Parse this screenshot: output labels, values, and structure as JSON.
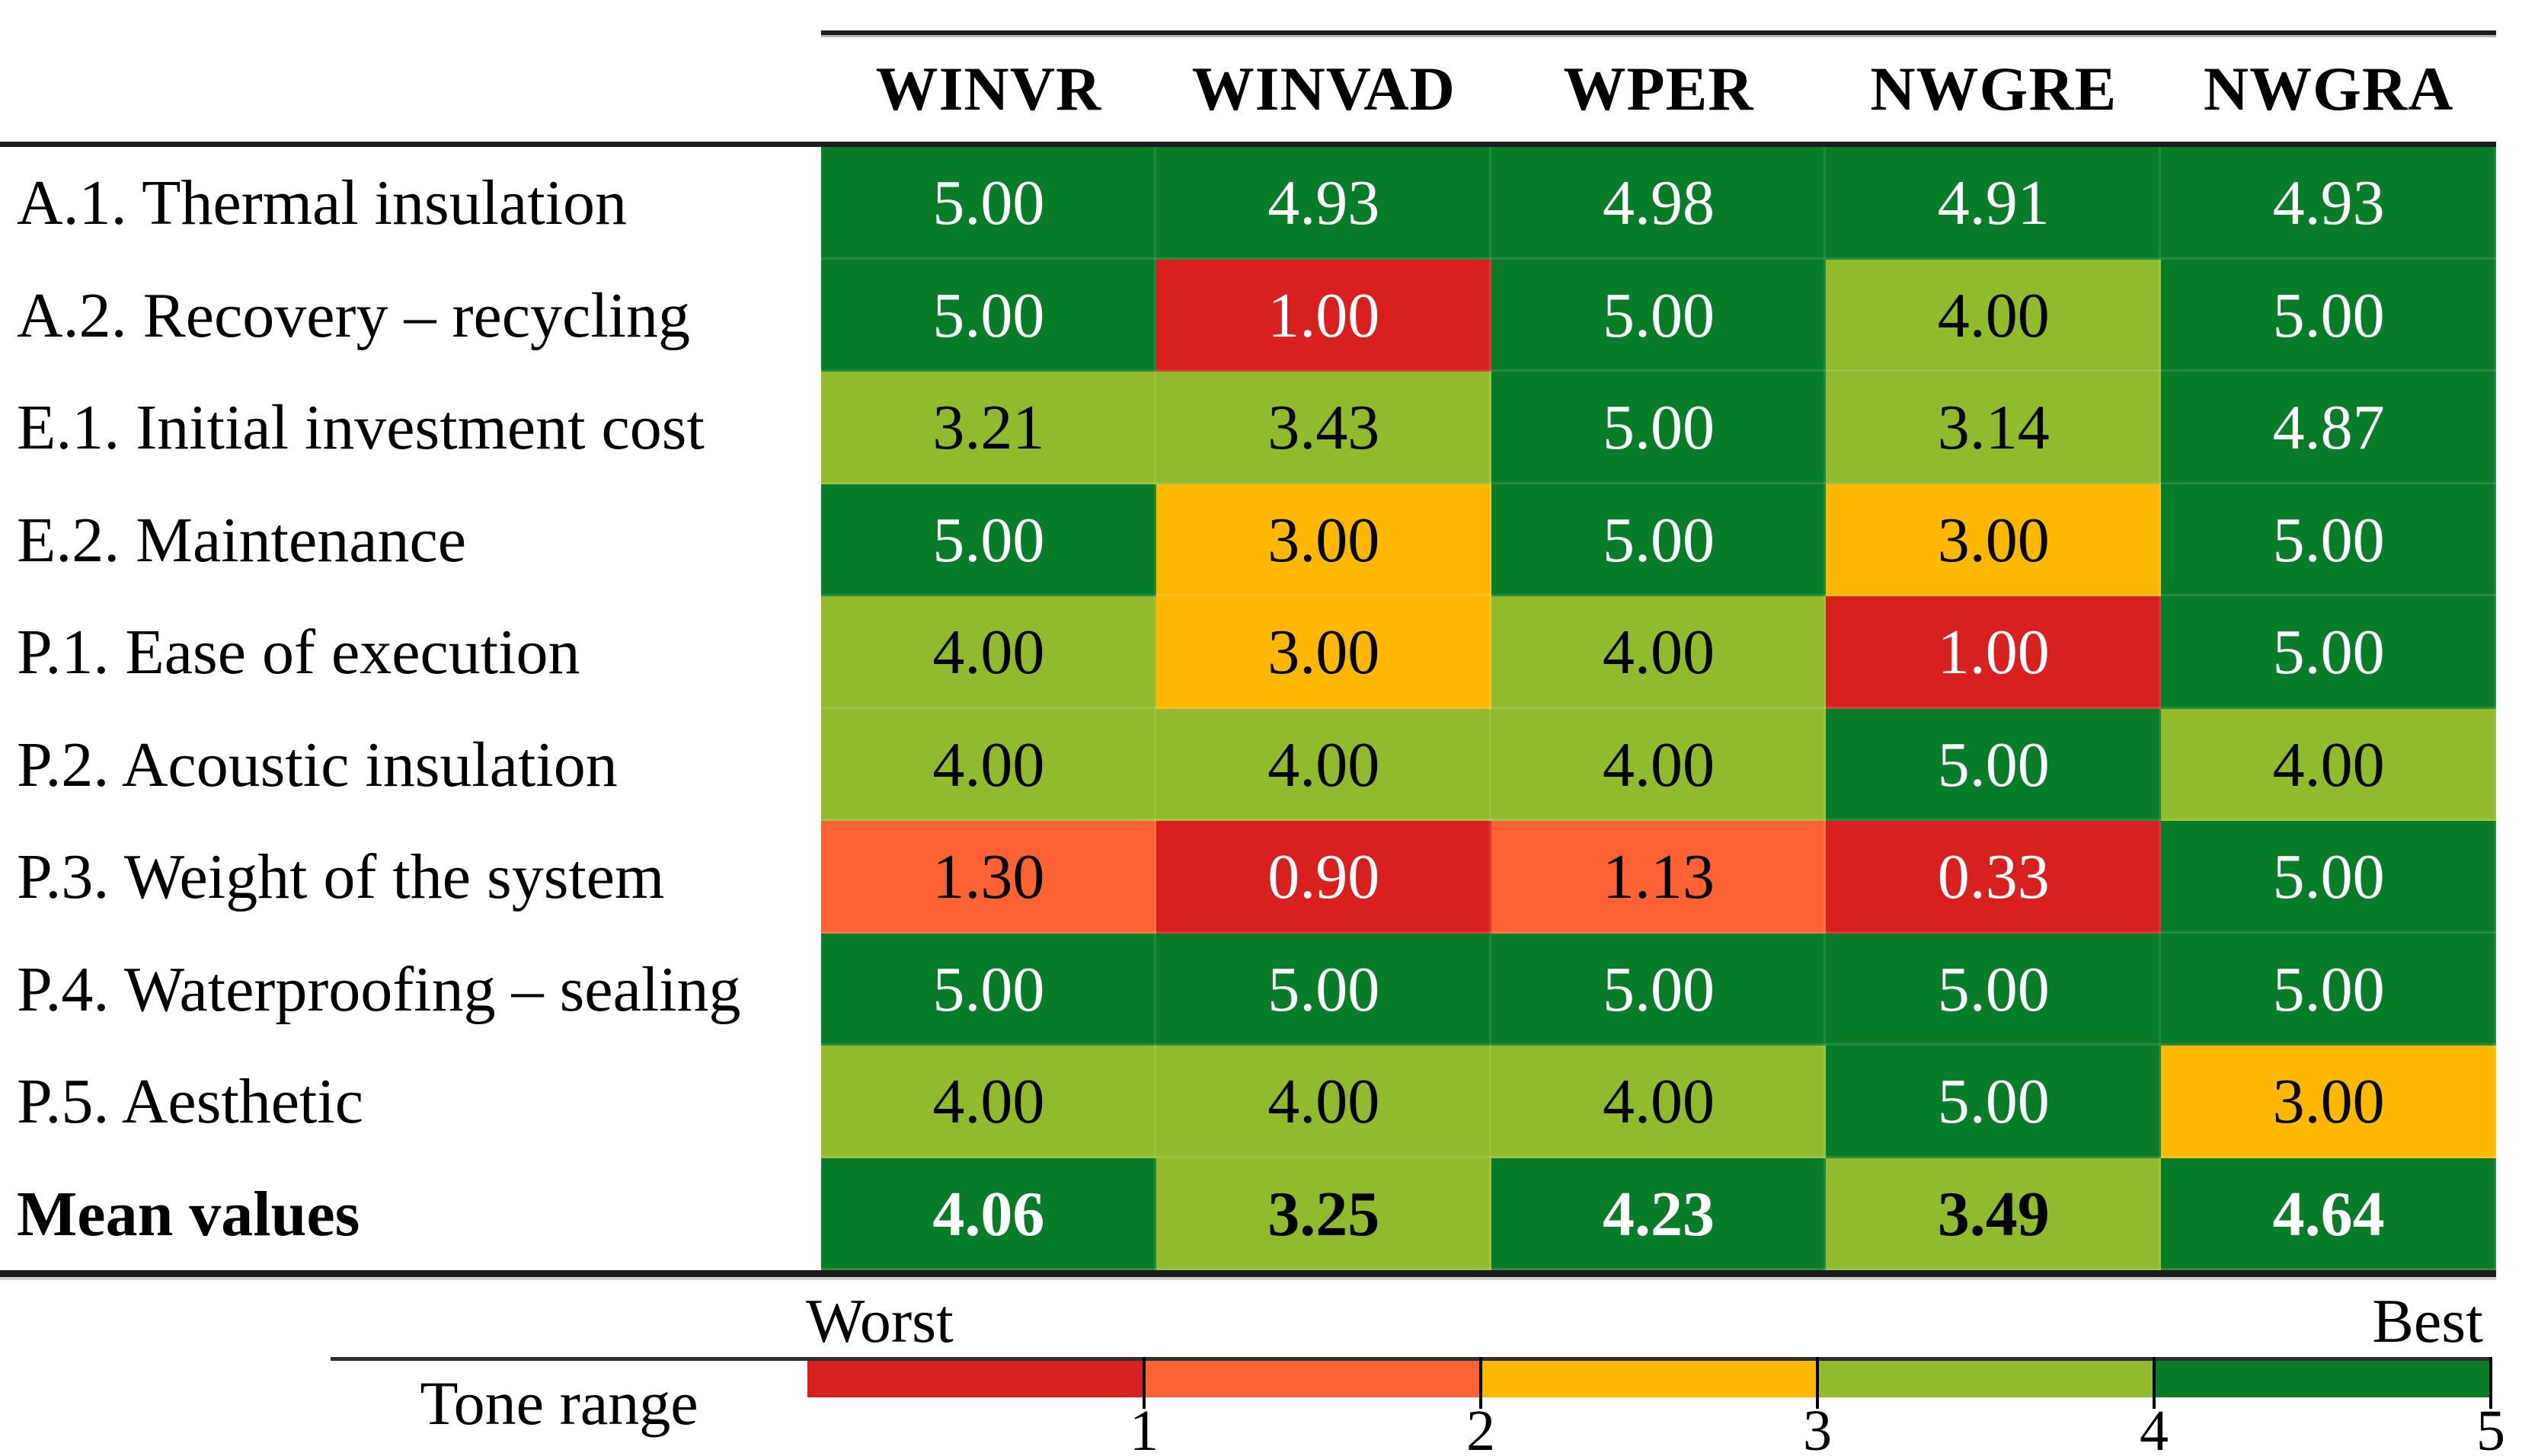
{
  "table": {
    "columns": [
      "WINVR",
      "WINVAD",
      "WPER",
      "NWGRE",
      "NWGRA"
    ],
    "rows": [
      {
        "label": "A.1. Thermal insulation",
        "values": [
          "5.00",
          "4.93",
          "4.98",
          "4.91",
          "4.93"
        ],
        "bold": false
      },
      {
        "label": "A.2. Recovery – recycling",
        "values": [
          "5.00",
          "1.00",
          "5.00",
          "4.00",
          "5.00"
        ],
        "bold": false
      },
      {
        "label": "E.1. Initial investment cost",
        "values": [
          "3.21",
          "3.43",
          "5.00",
          "3.14",
          "4.87"
        ],
        "bold": false
      },
      {
        "label": "E.2. Maintenance",
        "values": [
          "5.00",
          "3.00",
          "5.00",
          "3.00",
          "5.00"
        ],
        "bold": false
      },
      {
        "label": "P.1. Ease of execution",
        "values": [
          "4.00",
          "3.00",
          "4.00",
          "1.00",
          "5.00"
        ],
        "bold": false
      },
      {
        "label": "P.2. Acoustic insulation",
        "values": [
          "4.00",
          "4.00",
          "4.00",
          "5.00",
          "4.00"
        ],
        "bold": false
      },
      {
        "label": "P.3. Weight of the system",
        "values": [
          "1.30",
          "0.90",
          "1.13",
          "0.33",
          "5.00"
        ],
        "bold": false
      },
      {
        "label": "P.4. Waterproofing – sealing",
        "values": [
          "5.00",
          "5.00",
          "5.00",
          "5.00",
          "5.00"
        ],
        "bold": false
      },
      {
        "label": "P.5. Aesthetic",
        "values": [
          "4.00",
          "4.00",
          "4.00",
          "5.00",
          "3.00"
        ],
        "bold": false
      },
      {
        "label": "Mean values",
        "values": [
          "4.06",
          "3.25",
          "4.23",
          "3.49",
          "4.64"
        ],
        "bold": true
      }
    ]
  },
  "legend": {
    "title": "Tone range",
    "worst_label": "Worst",
    "best_label": "Best",
    "tick_labels": [
      "1",
      "2",
      "3",
      "4",
      "5"
    ]
  },
  "colors": {
    "tone_1": "#D8201E",
    "tone_2": "#FC6234",
    "tone_3": "#FFB800",
    "tone_4": "#91BA2C",
    "tone_5": "#087C27",
    "text_on_dark": "#FFFFFF",
    "text_on_light": "#000000",
    "rule": "#1C1C1C"
  },
  "chart_data": {
    "type": "heatmap",
    "title": "",
    "columns": [
      "WINVR",
      "WINVAD",
      "WPER",
      "NWGRE",
      "NWGRA"
    ],
    "rows": [
      "A.1. Thermal insulation",
      "A.2. Recovery – recycling",
      "E.1. Initial investment cost",
      "E.2. Maintenance",
      "P.1. Ease of execution",
      "P.2. Acoustic insulation",
      "P.3. Weight of the system",
      "P.4. Waterproofing – sealing",
      "P.5. Aesthetic",
      "Mean values"
    ],
    "values": [
      [
        5.0,
        4.93,
        4.98,
        4.91,
        4.93
      ],
      [
        5.0,
        1.0,
        5.0,
        4.0,
        5.0
      ],
      [
        3.21,
        3.43,
        5.0,
        3.14,
        4.87
      ],
      [
        5.0,
        3.0,
        5.0,
        3.0,
        5.0
      ],
      [
        4.0,
        3.0,
        4.0,
        1.0,
        5.0
      ],
      [
        4.0,
        4.0,
        4.0,
        5.0,
        4.0
      ],
      [
        1.3,
        0.9,
        1.13,
        0.33,
        5.0
      ],
      [
        5.0,
        5.0,
        5.0,
        5.0,
        5.0
      ],
      [
        4.0,
        4.0,
        4.0,
        5.0,
        3.0
      ],
      [
        4.06,
        3.25,
        4.23,
        3.49,
        4.64
      ]
    ],
    "mean_row_index": 9,
    "color_scale": {
      "title": "Tone range",
      "worst": "Worst",
      "best": "Best",
      "range": [
        0,
        5
      ],
      "ticks": [
        1,
        2,
        3,
        4,
        5
      ],
      "bucket_colors": {
        "0-1": "#D8201E",
        "1-2": "#FC6234",
        "2-3": "#FFB800",
        "3-4": "#91BA2C",
        "4-5": "#087C27"
      },
      "legend_position": "bottom"
    },
    "grid": "off"
  }
}
